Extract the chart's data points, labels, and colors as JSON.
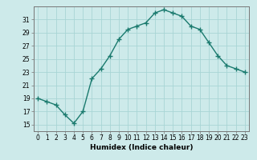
{
  "x": [
    0,
    1,
    2,
    3,
    4,
    5,
    6,
    7,
    8,
    9,
    10,
    11,
    12,
    13,
    14,
    15,
    16,
    17,
    18,
    19,
    20,
    21,
    22,
    23
  ],
  "y": [
    19,
    18.5,
    18,
    16.5,
    15.2,
    17,
    22,
    23.5,
    25.5,
    28,
    29.5,
    30,
    30.5,
    32,
    32.5,
    32,
    31.5,
    30,
    29.5,
    27.5,
    25.5,
    24,
    23.5,
    23
  ],
  "line_color": "#1a7a6e",
  "marker": "+",
  "marker_size": 4,
  "marker_linewidth": 1.0,
  "line_width": 1.0,
  "xlabel": "Humidex (Indice chaleur)",
  "xlim": [
    -0.5,
    23.5
  ],
  "ylim": [
    14,
    33
  ],
  "yticks": [
    15,
    17,
    19,
    21,
    23,
    25,
    27,
    29,
    31
  ],
  "xticks": [
    0,
    1,
    2,
    3,
    4,
    5,
    6,
    7,
    8,
    9,
    10,
    11,
    12,
    13,
    14,
    15,
    16,
    17,
    18,
    19,
    20,
    21,
    22,
    23
  ],
  "background_color": "#cdeaea",
  "grid_color": "#a8d5d5",
  "tick_fontsize": 5.5,
  "xlabel_fontsize": 6.5
}
